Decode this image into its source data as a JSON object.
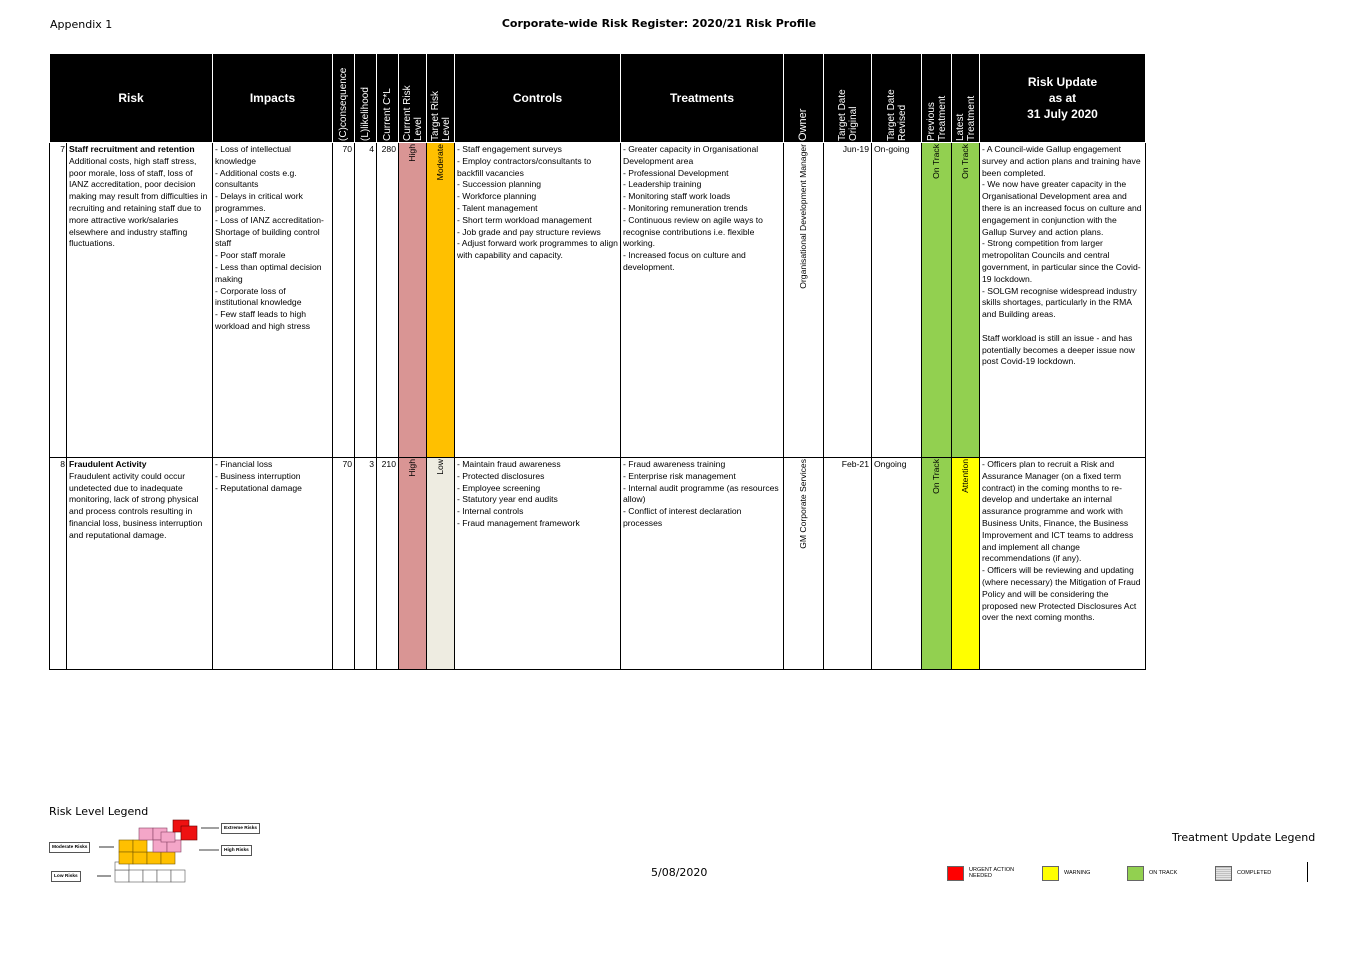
{
  "header": {
    "appendix": "Appendix 1",
    "title": "Corporate-wide Risk Register: 2020/21 Risk Profile"
  },
  "columns": {
    "risk": "Risk",
    "impacts": "Impacts",
    "consequence": "(C)consequence",
    "likelihood": "(L)likelihood",
    "current_cl": "Current C*L",
    "current_risk_level": "Current Risk\nLevel",
    "target_risk_level": "Target Risk\nLevel",
    "controls": "Controls",
    "treatments": "Treatments",
    "owner": "Owner",
    "target_date_original": "Target Date\nOriginal",
    "target_date_revised": "Target Date\nRevised",
    "previous_treatment": "Previous\nTreatment",
    "latest_treatment": "Latest\nTreatment",
    "risk_update": "Risk Update\nas at\n31 July 2020"
  },
  "rows": [
    {
      "number": "7",
      "title": "Staff recruitment and retention",
      "description": "Additional costs, high staff stress, poor morale, loss of staff, loss of IANZ accreditation, poor decision making may result from difficulties in recruiting and retaining staff due to more attractive work/salaries elsewhere and industry staffing fluctuations.",
      "impacts": "- Loss of intellectual knowledge\n- Additional costs e.g. consultants\n- Delays in critical work programmes.\n- Loss of IANZ accreditation- Shortage of building control staff\n- Poor staff morale\n- Less than optimal decision making\n- Corporate loss of institutional knowledge\n- Few staff leads to high workload and high stress",
      "consequence": "70",
      "likelihood": "4",
      "current_cl": "280",
      "current_risk_level": "High",
      "target_risk_level": "Moderate",
      "controls": "- Staff engagement surveys\n- Employ contractors/consultants to backfill vacancies\n- Succession planning\n- Workforce planning\n- Talent management\n- Short term workload management\n- Job grade and pay structure reviews\n- Adjust forward work programmes to align with capability and capacity.",
      "treatments": "- Greater capacity in Organisational Development area\n- Professional Development\n- Leadership training\n- Monitoring staff work loads\n- Monitoring remuneration trends\n- Continuous review on agile ways to recognise contributions i.e. flexible working.\n- Increased focus on culture and development.",
      "owner": "Organisational Development Manager",
      "target_date_original": "Jun-19",
      "target_date_revised": "On-going",
      "previous_treatment": "On Track",
      "latest_treatment": "On Track",
      "update": "- A Council-wide Gallup engagement survey and action plans and training have been completed.\n- We now have greater capacity in the Organisational Development area and there is an increased focus on culture and engagement in conjunction with the Gallup Survey and action plans.\n- Strong competition from larger metropolitan Councils and central government, in particular since the Covid-19 lockdown.\n- SOLGM recognise widespread industry skills shortages, particularly in the RMA and Building areas.\n\nStaff workload is still an issue - and has potentially becomes a deeper issue now post Covid-19 lockdown."
    },
    {
      "number": "8",
      "title": "Fraudulent Activity",
      "description": "Fraudulent activity could occur undetected due to inadequate monitoring, lack of strong physical and process controls resulting in financial loss, business interruption and reputational damage.",
      "impacts": "- Financial loss\n- Business interruption\n- Reputational damage",
      "consequence": "70",
      "likelihood": "3",
      "current_cl": "210",
      "current_risk_level": "High",
      "target_risk_level": "Low",
      "controls": "- Maintain fraud awareness\n- Protected disclosures\n- Employee screening\n- Statutory year end audits\n- Internal controls\n- Fraud management framework",
      "treatments": "- Fraud awareness training\n- Enterprise risk management\n- Internal audit programme (as resources allow)\n- Conflict of interest declaration processes",
      "owner": "GM Corporate Services",
      "target_date_original": "Feb-21",
      "target_date_revised": "Ongoing",
      "previous_treatment": "On Track",
      "latest_treatment": "Attention",
      "update": "- Officers plan to recruit a Risk and Assurance Manager (on a fixed term contract) in the coming months to re-develop and undertake an internal assurance programme and work with Business Units, Finance, the Business Improvement and ICT teams to address and implement all change recommendations (if any).\n - Officers will be reviewing and updating (where necessary) the Mitigation of Fraud Policy and will be considering the proposed new Protected Disclosures Act over the next coming months."
    }
  ],
  "colors": {
    "high": "#d99594",
    "moderate": "#ffc000",
    "low": "#eeece1",
    "on_track": "#92d050",
    "attention": "#ffff00",
    "urgent": "#ff0000",
    "completed": "#c0c0c0"
  },
  "risk_legend": {
    "label": "Risk Level Legend",
    "extreme": "Extreme Risks",
    "high": "High Risks",
    "moderate": "Moderate Risks",
    "low": "Low Risks"
  },
  "footer": {
    "date": "5/08/2020"
  },
  "treatment_legend": {
    "label": "Treatment Update Legend",
    "urgent": "URGENT ACTION NEEDED",
    "warning": "WARNING",
    "on_track": "ON TRACK",
    "completed": "COMPLETED"
  }
}
